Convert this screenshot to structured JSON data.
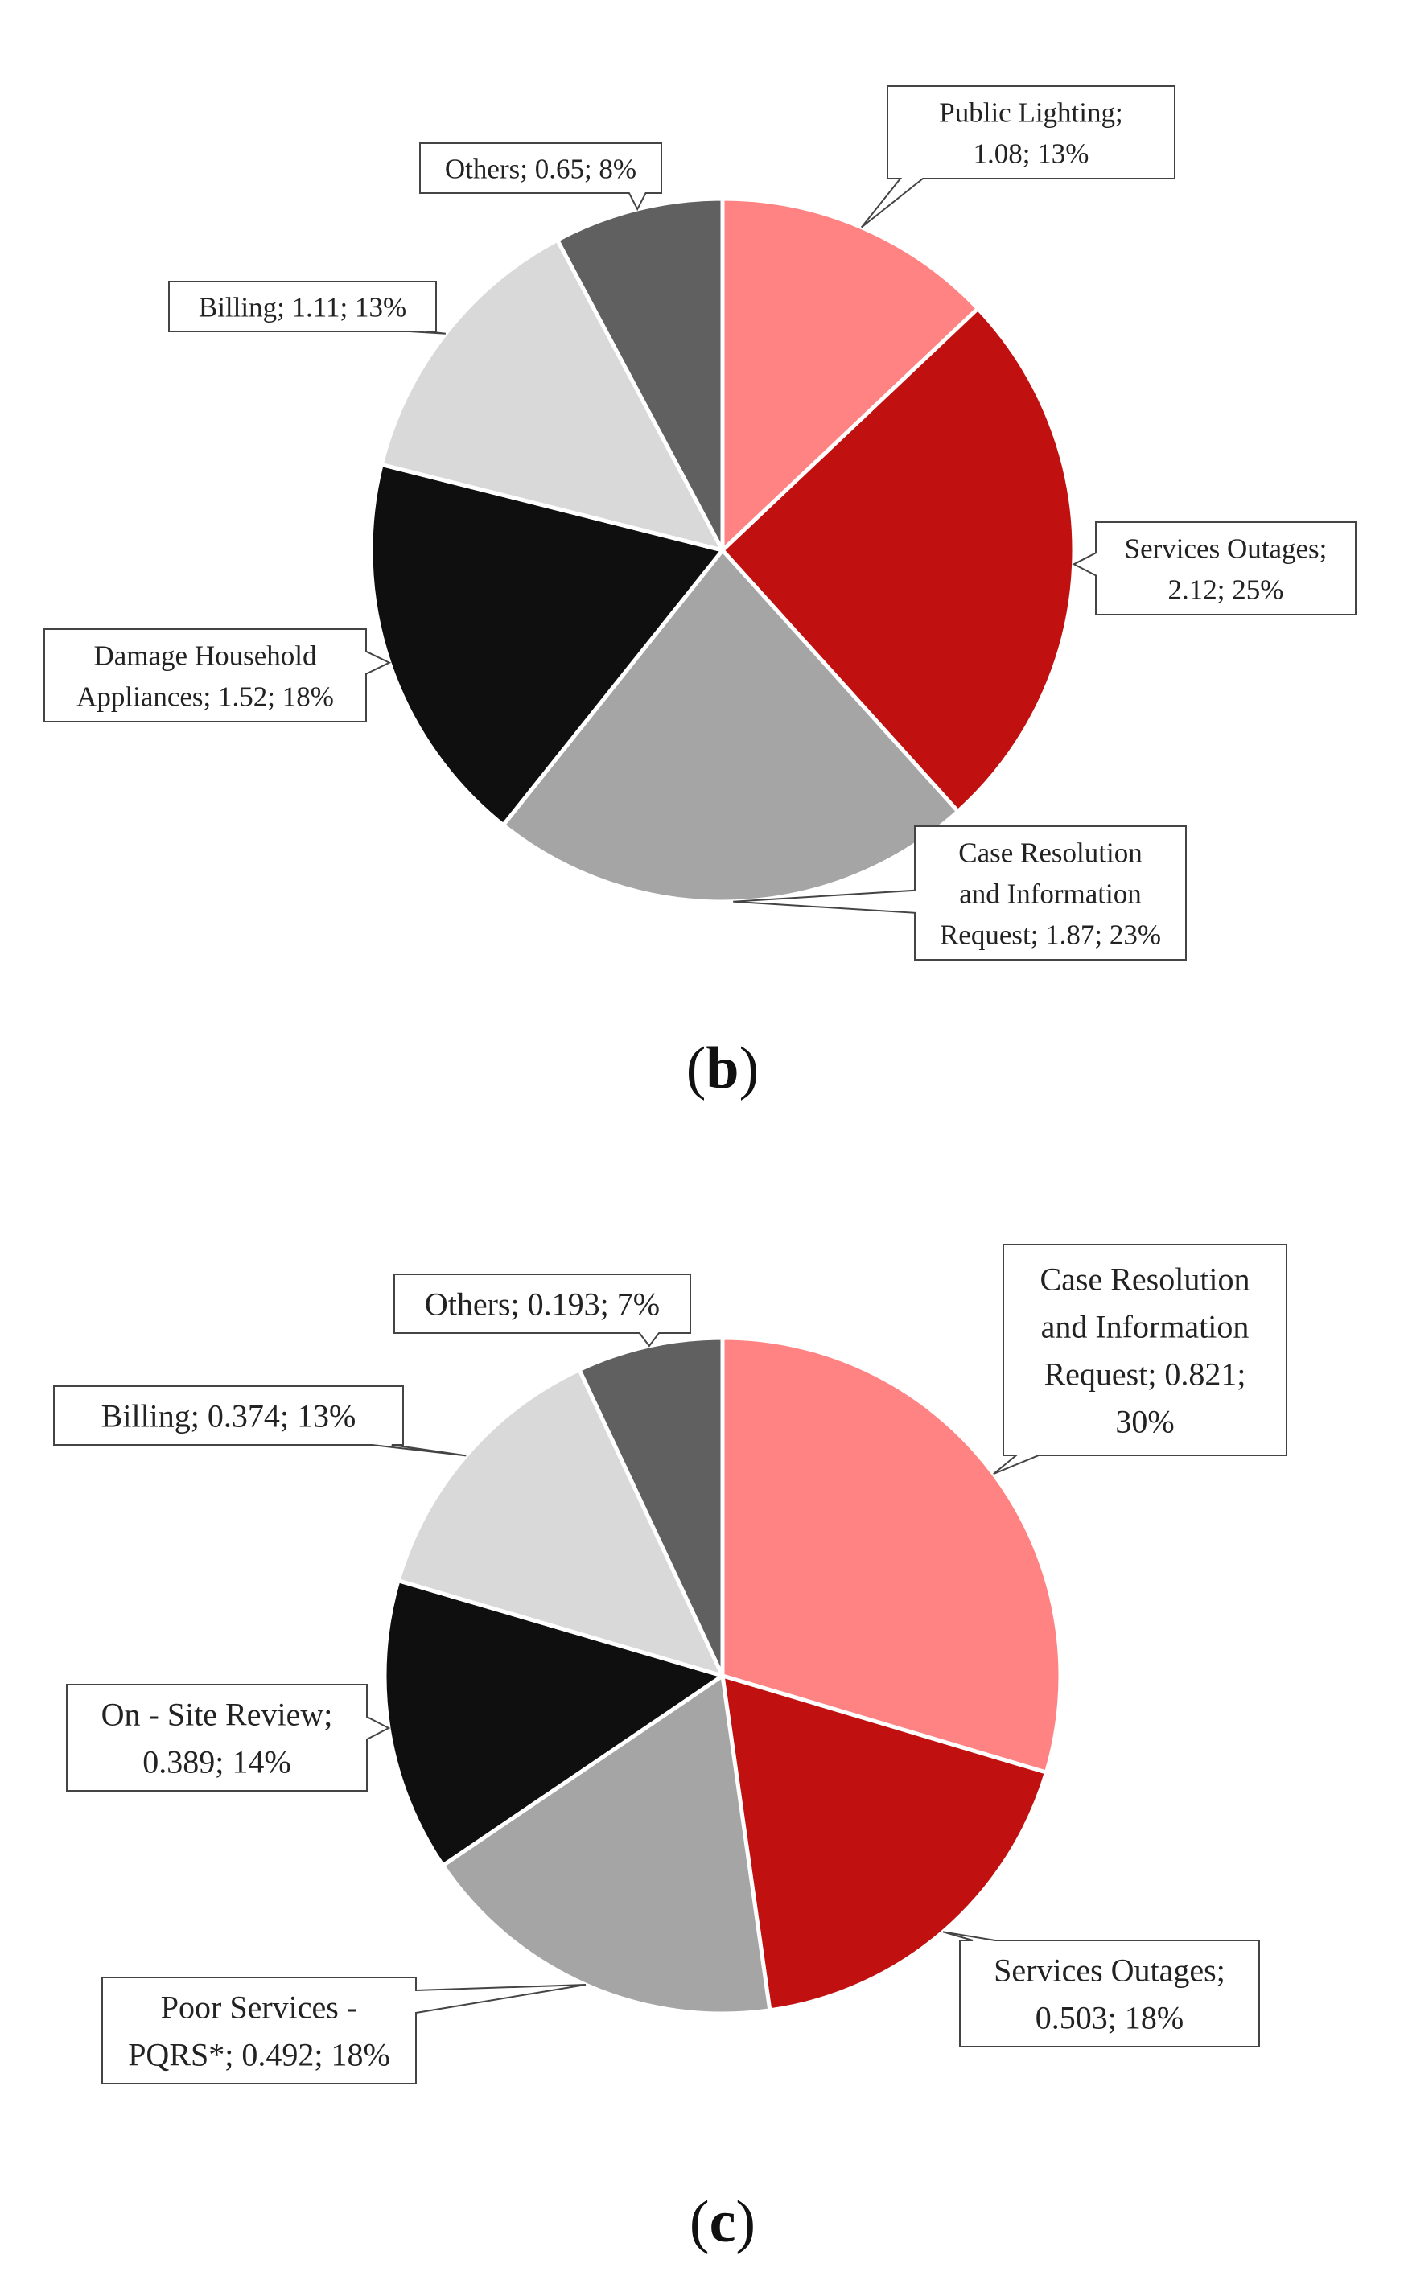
{
  "chart_data": [
    {
      "type": "pie",
      "panel_label": "(b)",
      "panel_letter": "b",
      "start_angle_deg": 0,
      "direction": "clockwise",
      "slices": [
        {
          "label": "Public Lighting",
          "value": 1.08,
          "percent": "13%",
          "color": "#FF8383",
          "text_lines": [
            "Public Lighting;",
            "1.08; 13%"
          ]
        },
        {
          "label": "Services Outages",
          "value": 2.12,
          "percent": "25%",
          "color": "#C11010",
          "text_lines": [
            "Services Outages;",
            "2.12; 25%"
          ]
        },
        {
          "label": "Case Resolution and Information Request",
          "value": 1.87,
          "percent": "23%",
          "color": "#A5A5A5",
          "text_lines": [
            "Case Resolution",
            "and Information",
            "Request; 1.87; 23%"
          ]
        },
        {
          "label": "Damage Household Appliances",
          "value": 1.52,
          "percent": "18%",
          "color": "#0F0F0F",
          "text_lines": [
            "Damage Household",
            "Appliances; 1.52; 18%"
          ]
        },
        {
          "label": "Billing",
          "value": 1.11,
          "percent": "13%",
          "color": "#D9D9D9",
          "text_lines": [
            "Billing; 1.11; 13%"
          ]
        },
        {
          "label": "Others",
          "value": 0.65,
          "percent": "8%",
          "color": "#606060",
          "text_lines": [
            "Others; 0.65; 8%"
          ]
        }
      ]
    },
    {
      "type": "pie",
      "panel_label": "(c)",
      "panel_letter": "c",
      "start_angle_deg": 0,
      "direction": "clockwise",
      "slices": [
        {
          "label": "Case Resolution and Information Request",
          "value": 0.821,
          "percent": "30%",
          "color": "#FF8383",
          "text_lines": [
            "Case Resolution",
            "and Information",
            "Request; 0.821;",
            "30%"
          ]
        },
        {
          "label": "Services Outages",
          "value": 0.503,
          "percent": "18%",
          "color": "#C11010",
          "text_lines": [
            "Services Outages;",
            "0.503; 18%"
          ]
        },
        {
          "label": "Poor Services - PQRS*",
          "value": 0.492,
          "percent": "18%",
          "color": "#A5A5A5",
          "text_lines": [
            "Poor Services -",
            "PQRS*; 0.492; 18%"
          ]
        },
        {
          "label": "On - Site Review",
          "value": 0.389,
          "percent": "14%",
          "color": "#0F0F0F",
          "text_lines": [
            "On - Site Review;",
            "0.389; 14%"
          ]
        },
        {
          "label": "Billing",
          "value": 0.374,
          "percent": "13%",
          "color": "#D9D9D9",
          "text_lines": [
            "Billing; 0.374; 13%"
          ]
        },
        {
          "label": "Others",
          "value": 0.193,
          "percent": "7%",
          "color": "#606060",
          "text_lines": [
            "Others; 0.193; 7%"
          ]
        }
      ]
    }
  ]
}
